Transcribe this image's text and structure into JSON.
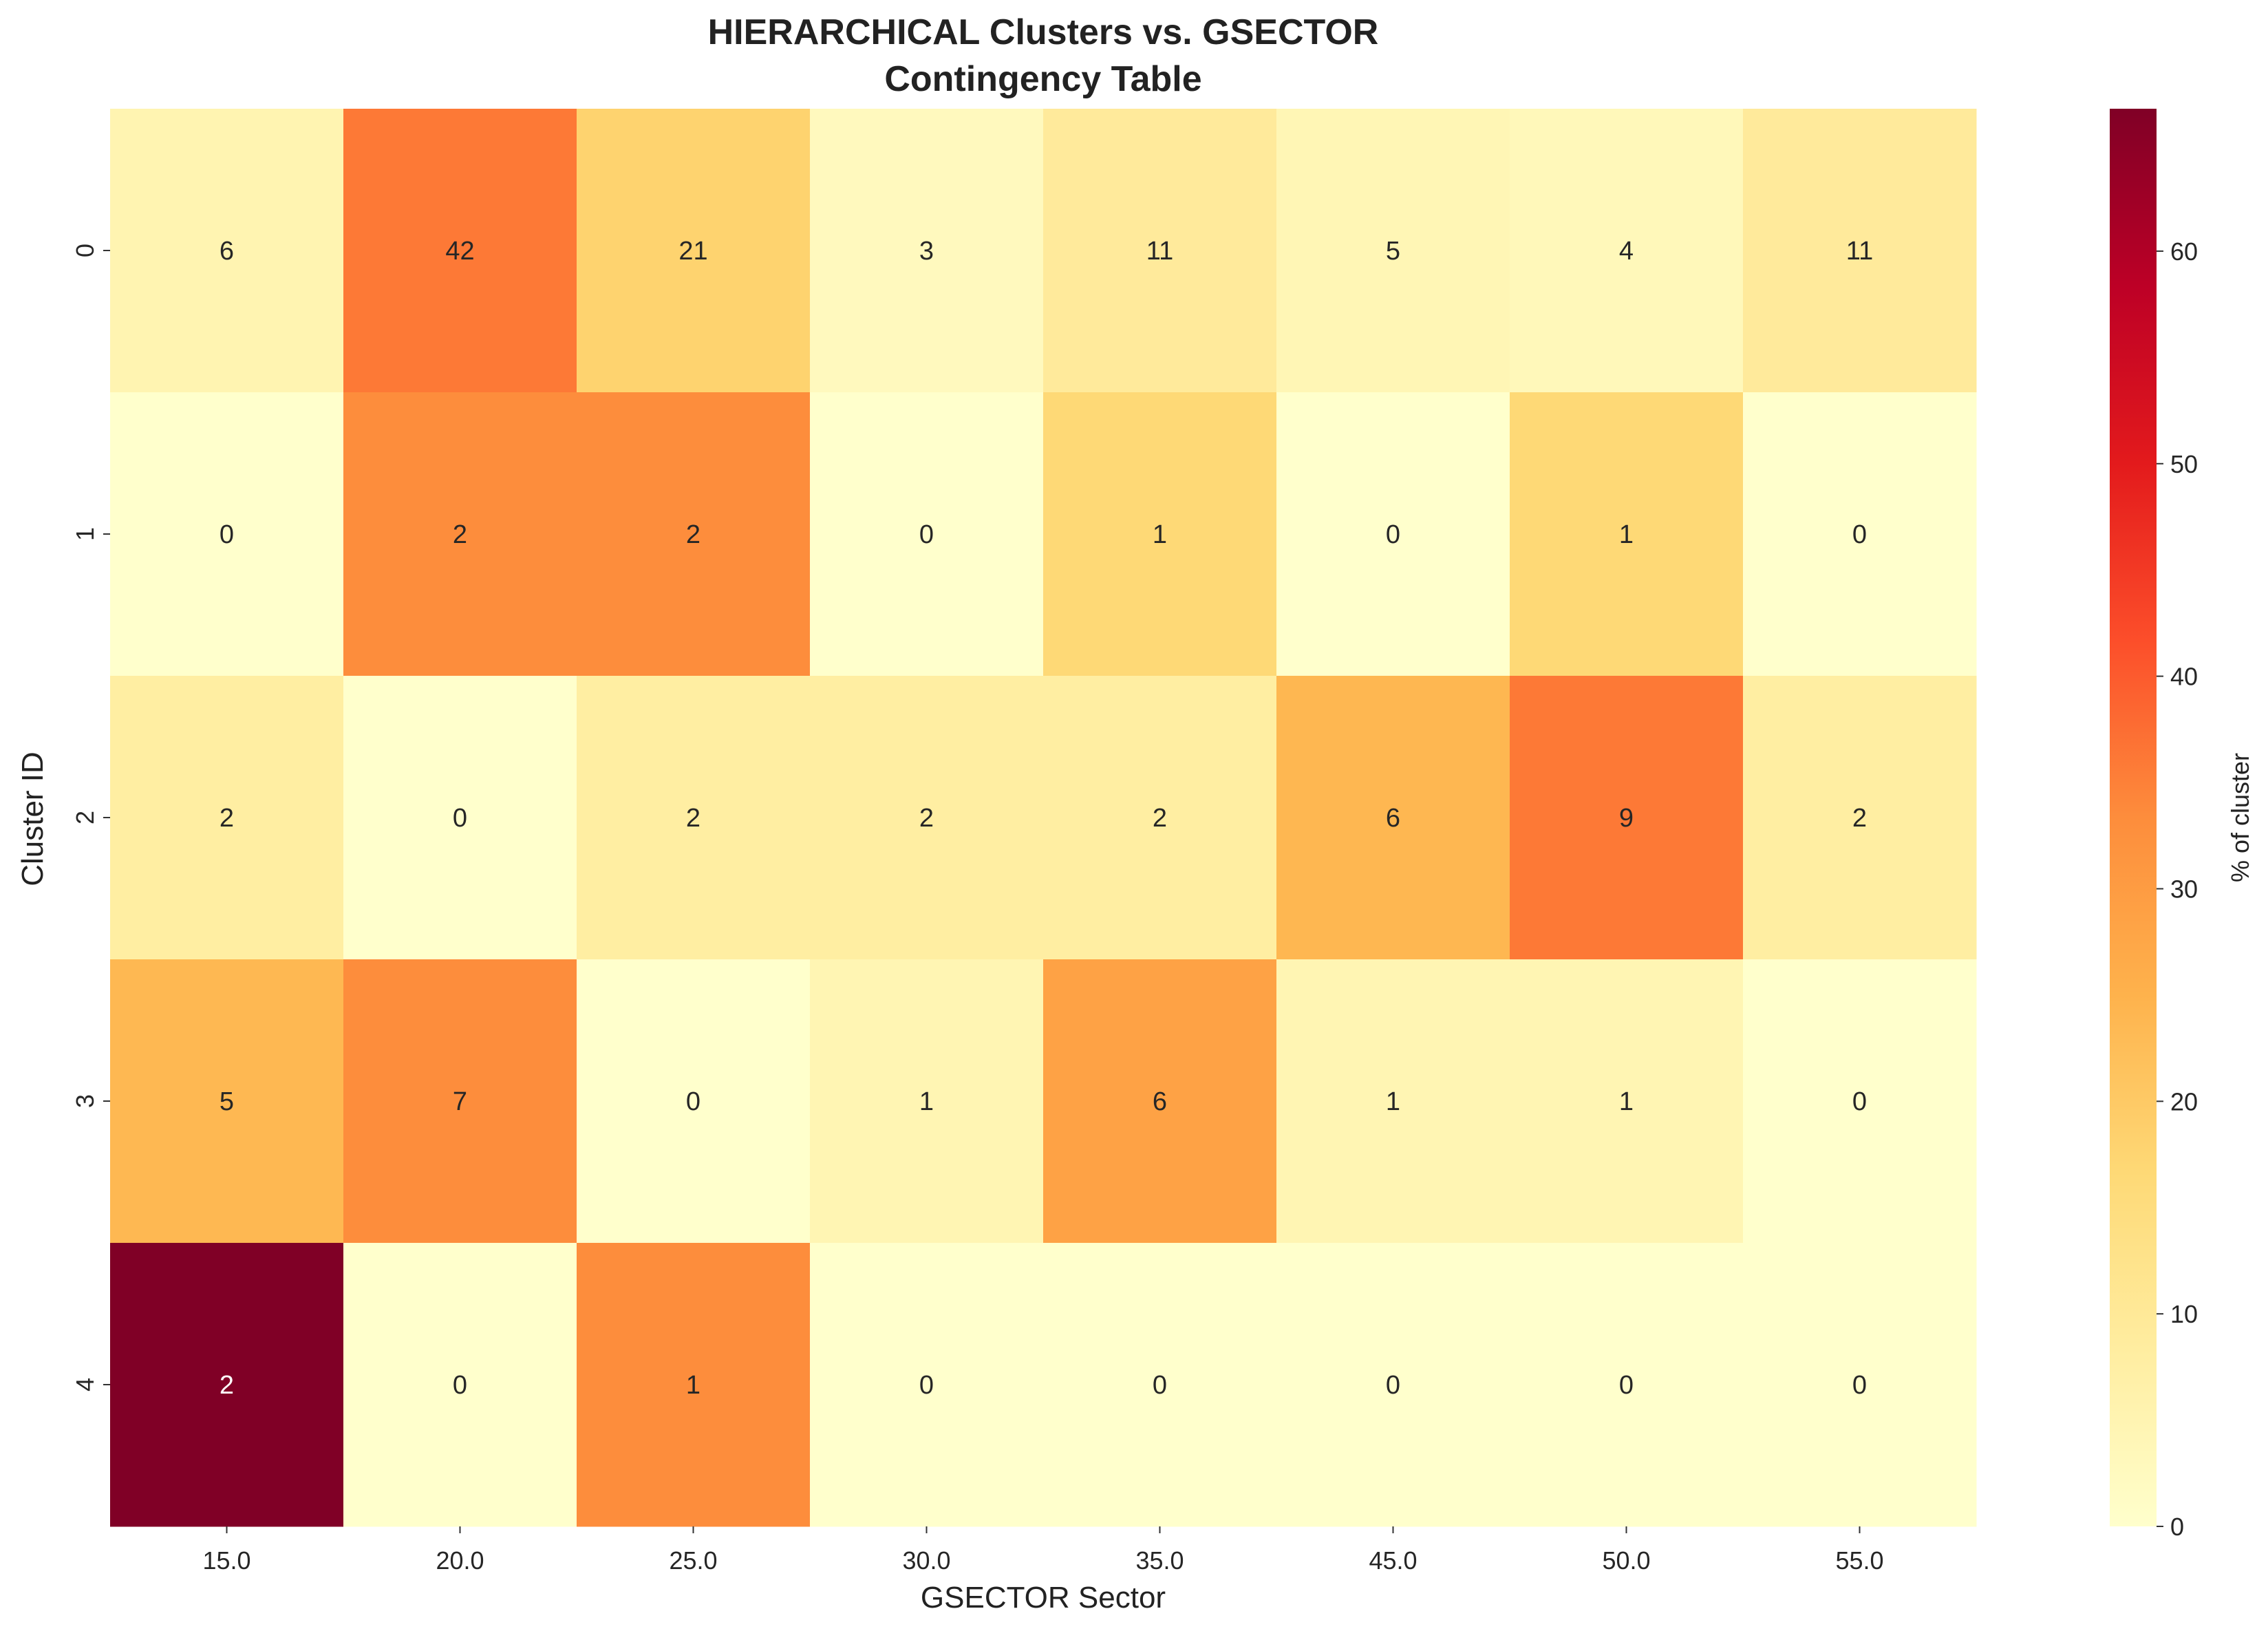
{
  "chart_data": {
    "type": "heatmap",
    "title": "HIERARCHICAL Clusters vs. GSECTOR",
    "subtitle": "Contingency Table",
    "xlabel": "GSECTOR Sector",
    "ylabel": "Cluster ID",
    "x_categories": [
      "15.0",
      "20.0",
      "25.0",
      "30.0",
      "35.0",
      "45.0",
      "50.0",
      "55.0"
    ],
    "y_categories": [
      "0",
      "1",
      "2",
      "3",
      "4"
    ],
    "annotations": [
      [
        6,
        42,
        21,
        3,
        11,
        5,
        4,
        11
      ],
      [
        0,
        2,
        2,
        0,
        1,
        0,
        1,
        0
      ],
      [
        2,
        0,
        2,
        2,
        2,
        6,
        9,
        2
      ],
      [
        5,
        7,
        0,
        1,
        6,
        1,
        1,
        0
      ],
      [
        2,
        0,
        1,
        0,
        0,
        0,
        0,
        0
      ]
    ],
    "percent_values": [
      [
        5.1,
        36.0,
        18.0,
        2.6,
        9.4,
        4.3,
        3.4,
        9.4
      ],
      [
        0,
        33.3,
        33.3,
        0,
        16.7,
        0,
        16.7,
        0
      ],
      [
        8.0,
        0,
        8.0,
        8.0,
        8.0,
        24.0,
        36.0,
        8.0
      ],
      [
        23.8,
        33.3,
        0,
        4.8,
        28.6,
        4.8,
        4.8,
        0
      ],
      [
        66.7,
        0,
        33.3,
        0,
        0,
        0,
        0,
        0
      ]
    ],
    "colorbar": {
      "label": "% of cluster",
      "range": [
        0,
        66.7
      ],
      "ticks": [
        0,
        10,
        20,
        30,
        40,
        50,
        60
      ],
      "colormap": "YlOrRd"
    },
    "grid": false
  }
}
